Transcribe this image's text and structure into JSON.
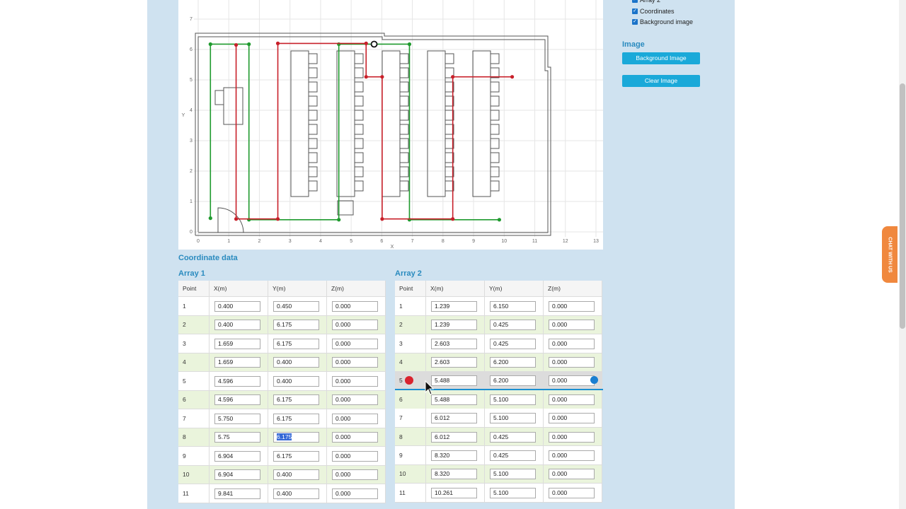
{
  "plot": {
    "xticks": [
      0,
      1,
      2,
      3,
      4,
      5,
      6,
      7,
      8,
      9,
      10,
      11,
      12,
      13
    ],
    "yticks": [
      0,
      1,
      2,
      3,
      4,
      5,
      6,
      7
    ],
    "xlabel": "X",
    "ylabel": "Y"
  },
  "coordinate_title": "Coordinate data",
  "array1": {
    "title": "Array 1",
    "headers": [
      "Point",
      "X(m)",
      "Y(m)",
      "Z(m)"
    ],
    "rows": [
      [
        "1",
        "0.400",
        "0.450",
        "0.000"
      ],
      [
        "2",
        "0.400",
        "6.175",
        "0.000"
      ],
      [
        "3",
        "1.659",
        "6.175",
        "0.000"
      ],
      [
        "4",
        "1.659",
        "0.400",
        "0.000"
      ],
      [
        "5",
        "4.596",
        "0.400",
        "0.000"
      ],
      [
        "6",
        "4.596",
        "6.175",
        "0.000"
      ],
      [
        "7",
        "5.750",
        "6.175",
        "0.000"
      ],
      [
        "8",
        "5.75",
        "6.175",
        "0.000"
      ],
      [
        "9",
        "6.904",
        "6.175",
        "0.000"
      ],
      [
        "10",
        "6.904",
        "0.400",
        "0.000"
      ],
      [
        "11",
        "9.841",
        "0.400",
        "0.000"
      ]
    ]
  },
  "array2": {
    "title": "Array 2",
    "headers": [
      "Point",
      "X(m)",
      "Y(m)",
      "Z(m)"
    ],
    "rows": [
      [
        "1",
        "1.239",
        "6.150",
        "0.000"
      ],
      [
        "2",
        "1.239",
        "0.425",
        "0.000"
      ],
      [
        "3",
        "2.603",
        "0.425",
        "0.000"
      ],
      [
        "4",
        "2.603",
        "6.200",
        "0.000"
      ],
      [
        "5",
        "5.488",
        "6.200",
        "0.000"
      ],
      [
        "6",
        "5.488",
        "5.100",
        "0.000"
      ],
      [
        "7",
        "6.012",
        "5.100",
        "0.000"
      ],
      [
        "8",
        "6.012",
        "0.425",
        "0.000"
      ],
      [
        "9",
        "8.320",
        "0.425",
        "0.000"
      ],
      [
        "10",
        "8.320",
        "5.100",
        "0.000"
      ],
      [
        "11",
        "10.261",
        "5.100",
        "0.000"
      ]
    ]
  },
  "sidebar": {
    "checkboxes": [
      "Array 2",
      "Coordinates",
      "Background image"
    ],
    "image_title": "Image",
    "buttons": [
      "Background Image",
      "Clear Image"
    ]
  },
  "chat": "CHAT WITH US"
}
